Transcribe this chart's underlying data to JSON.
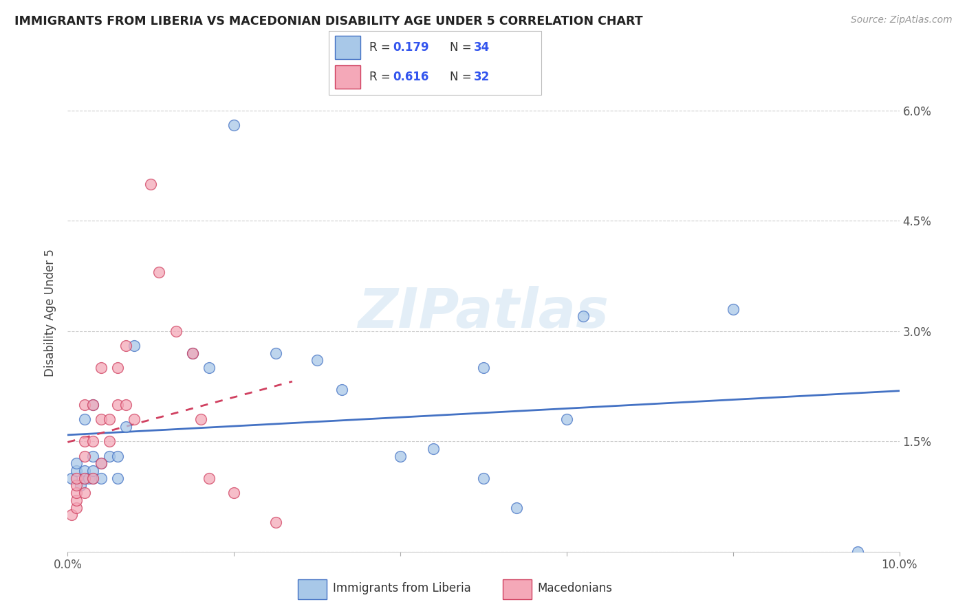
{
  "title": "IMMIGRANTS FROM LIBERIA VS MACEDONIAN DISABILITY AGE UNDER 5 CORRELATION CHART",
  "source": "Source: ZipAtlas.com",
  "ylabel": "Disability Age Under 5",
  "xlim": [
    0.0,
    0.1
  ],
  "ylim": [
    0.0,
    0.065
  ],
  "x_ticks": [
    0.0,
    0.02,
    0.04,
    0.06,
    0.08,
    0.1
  ],
  "x_tick_labels": [
    "0.0%",
    "",
    "",
    "",
    "",
    "10.0%"
  ],
  "y_ticks": [
    0.0,
    0.015,
    0.03,
    0.045,
    0.06
  ],
  "y_tick_labels": [
    "",
    "1.5%",
    "3.0%",
    "4.5%",
    "6.0%"
  ],
  "liberia_R": "0.179",
  "liberia_N": "34",
  "macedonian_R": "0.616",
  "macedonian_N": "32",
  "liberia_face_color": "#A8C8E8",
  "macedonian_face_color": "#F4A8B8",
  "liberia_edge_color": "#4472C4",
  "macedonian_edge_color": "#D04060",
  "stat_color": "#3355EE",
  "liberia_x": [
    0.0005,
    0.001,
    0.001,
    0.0015,
    0.002,
    0.002,
    0.002,
    0.0025,
    0.003,
    0.003,
    0.003,
    0.003,
    0.004,
    0.004,
    0.005,
    0.006,
    0.006,
    0.007,
    0.008,
    0.015,
    0.017,
    0.02,
    0.025,
    0.03,
    0.033,
    0.04,
    0.044,
    0.05,
    0.05,
    0.054,
    0.06,
    0.062,
    0.08,
    0.095
  ],
  "liberia_y": [
    0.01,
    0.011,
    0.012,
    0.009,
    0.01,
    0.011,
    0.018,
    0.01,
    0.01,
    0.011,
    0.013,
    0.02,
    0.01,
    0.012,
    0.013,
    0.01,
    0.013,
    0.017,
    0.028,
    0.027,
    0.025,
    0.058,
    0.027,
    0.026,
    0.022,
    0.013,
    0.014,
    0.01,
    0.025,
    0.006,
    0.018,
    0.032,
    0.033,
    0.0
  ],
  "macedonian_x": [
    0.0005,
    0.001,
    0.001,
    0.001,
    0.001,
    0.001,
    0.002,
    0.002,
    0.002,
    0.002,
    0.002,
    0.003,
    0.003,
    0.003,
    0.004,
    0.004,
    0.004,
    0.005,
    0.005,
    0.006,
    0.006,
    0.007,
    0.007,
    0.008,
    0.01,
    0.011,
    0.013,
    0.015,
    0.016,
    0.017,
    0.02,
    0.025
  ],
  "macedonian_y": [
    0.005,
    0.006,
    0.007,
    0.008,
    0.009,
    0.01,
    0.008,
    0.01,
    0.013,
    0.015,
    0.02,
    0.01,
    0.015,
    0.02,
    0.012,
    0.018,
    0.025,
    0.015,
    0.018,
    0.02,
    0.025,
    0.02,
    0.028,
    0.018,
    0.05,
    0.038,
    0.03,
    0.027,
    0.018,
    0.01,
    0.008,
    0.004
  ]
}
